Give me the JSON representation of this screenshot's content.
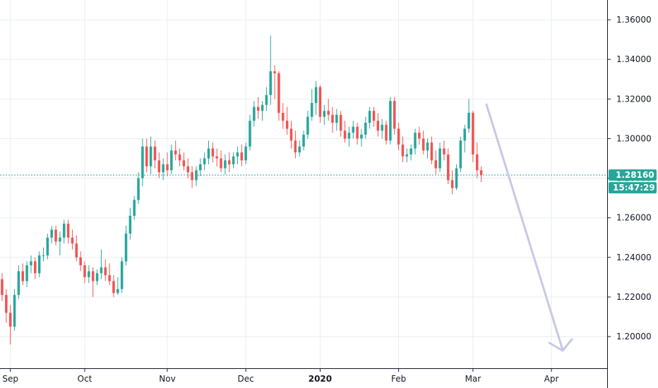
{
  "colors": {
    "up": "#26a69a",
    "down": "#ef5350",
    "grid": "#e8edf2",
    "axis": "#131722",
    "price_line": "#26a69a",
    "badge": "#26a69a",
    "arrow": "#c8c8e6"
  },
  "current_price_label": "1.28160",
  "countdown_label": "15:47:29",
  "chart_data": {
    "type": "candlestick",
    "title": "",
    "xlabel": "",
    "ylabel": "",
    "ylim": [
      1.184,
      1.37
    ],
    "grid": true,
    "y_ticks": [
      "1.36000",
      "1.34000",
      "1.32000",
      "1.30000",
      "1.28000",
      "1.26000",
      "1.24000",
      "1.22000",
      "1.20000"
    ],
    "x_ticks": [
      "Sep",
      "Oct",
      "Nov",
      "Dec",
      "2020",
      "Feb",
      "Mar",
      "Apr"
    ],
    "current_price": 1.2816,
    "candles": [
      [
        1.229,
        1.232,
        1.218,
        1.221
      ],
      [
        1.221,
        1.224,
        1.207,
        1.212
      ],
      [
        1.212,
        1.216,
        1.196,
        1.205
      ],
      [
        1.205,
        1.224,
        1.203,
        1.221
      ],
      [
        1.221,
        1.236,
        1.219,
        1.233
      ],
      [
        1.233,
        1.237,
        1.226,
        1.228
      ],
      [
        1.228,
        1.238,
        1.225,
        1.236
      ],
      [
        1.236,
        1.241,
        1.232,
        1.238
      ],
      [
        1.238,
        1.24,
        1.229,
        1.232
      ],
      [
        1.232,
        1.243,
        1.23,
        1.241
      ],
      [
        1.241,
        1.245,
        1.238,
        1.241
      ],
      [
        1.241,
        1.252,
        1.239,
        1.25
      ],
      [
        1.25,
        1.256,
        1.247,
        1.254
      ],
      [
        1.254,
        1.256,
        1.246,
        1.248
      ],
      [
        1.248,
        1.253,
        1.241,
        1.25
      ],
      [
        1.25,
        1.259,
        1.247,
        1.257
      ],
      [
        1.257,
        1.259,
        1.247,
        1.25
      ],
      [
        1.25,
        1.254,
        1.244,
        1.247
      ],
      [
        1.247,
        1.251,
        1.238,
        1.24
      ],
      [
        1.24,
        1.243,
        1.233,
        1.236
      ],
      [
        1.236,
        1.238,
        1.227,
        1.23
      ],
      [
        1.23,
        1.236,
        1.227,
        1.233
      ],
      [
        1.233,
        1.235,
        1.22,
        1.228
      ],
      [
        1.228,
        1.234,
        1.226,
        1.232
      ],
      [
        1.232,
        1.244,
        1.229,
        1.235
      ],
      [
        1.235,
        1.239,
        1.228,
        1.231
      ],
      [
        1.231,
        1.237,
        1.226,
        1.228
      ],
      [
        1.228,
        1.231,
        1.22,
        1.222
      ],
      [
        1.222,
        1.23,
        1.221,
        1.224
      ],
      [
        1.224,
        1.24,
        1.222,
        1.238
      ],
      [
        1.238,
        1.256,
        1.236,
        1.252
      ],
      [
        1.252,
        1.265,
        1.249,
        1.261
      ],
      [
        1.261,
        1.271,
        1.259,
        1.269
      ],
      [
        1.269,
        1.283,
        1.267,
        1.28
      ],
      [
        1.28,
        1.3,
        1.276,
        1.296
      ],
      [
        1.296,
        1.3,
        1.283,
        1.286
      ],
      [
        1.286,
        1.301,
        1.282,
        1.296
      ],
      [
        1.296,
        1.299,
        1.285,
        1.289
      ],
      [
        1.289,
        1.293,
        1.28,
        1.283
      ],
      [
        1.283,
        1.29,
        1.279,
        1.287
      ],
      [
        1.287,
        1.293,
        1.281,
        1.284
      ],
      [
        1.284,
        1.297,
        1.282,
        1.294
      ],
      [
        1.294,
        1.299,
        1.289,
        1.292
      ],
      [
        1.292,
        1.295,
        1.286,
        1.289
      ],
      [
        1.289,
        1.293,
        1.284,
        1.286
      ],
      [
        1.286,
        1.29,
        1.28,
        1.283
      ],
      [
        1.283,
        1.286,
        1.275,
        1.279
      ],
      [
        1.279,
        1.286,
        1.276,
        1.284
      ],
      [
        1.284,
        1.29,
        1.281,
        1.287
      ],
      [
        1.287,
        1.293,
        1.284,
        1.29
      ],
      [
        1.29,
        1.299,
        1.287,
        1.295
      ],
      [
        1.295,
        1.298,
        1.288,
        1.291
      ],
      [
        1.291,
        1.295,
        1.286,
        1.29
      ],
      [
        1.29,
        1.294,
        1.283,
        1.285
      ],
      [
        1.285,
        1.292,
        1.282,
        1.289
      ],
      [
        1.289,
        1.293,
        1.283,
        1.287
      ],
      [
        1.287,
        1.293,
        1.285,
        1.291
      ],
      [
        1.291,
        1.296,
        1.287,
        1.293
      ],
      [
        1.293,
        1.297,
        1.286,
        1.289
      ],
      [
        1.289,
        1.298,
        1.287,
        1.296
      ],
      [
        1.296,
        1.312,
        1.294,
        1.309
      ],
      [
        1.309,
        1.319,
        1.306,
        1.316
      ],
      [
        1.316,
        1.321,
        1.31,
        1.314
      ],
      [
        1.314,
        1.319,
        1.309,
        1.317
      ],
      [
        1.317,
        1.326,
        1.314,
        1.322
      ],
      [
        1.322,
        1.352,
        1.317,
        1.334
      ],
      [
        1.334,
        1.337,
        1.32,
        1.333
      ],
      [
        1.333,
        1.334,
        1.309,
        1.313
      ],
      [
        1.313,
        1.318,
        1.305,
        1.309
      ],
      [
        1.309,
        1.316,
        1.302,
        1.305
      ],
      [
        1.305,
        1.309,
        1.295,
        1.299
      ],
      [
        1.299,
        1.304,
        1.29,
        1.293
      ],
      [
        1.293,
        1.299,
        1.291,
        1.296
      ],
      [
        1.296,
        1.304,
        1.294,
        1.302
      ],
      [
        1.302,
        1.314,
        1.3,
        1.311
      ],
      [
        1.311,
        1.325,
        1.309,
        1.318
      ],
      [
        1.318,
        1.329,
        1.312,
        1.326
      ],
      [
        1.326,
        1.327,
        1.308,
        1.311
      ],
      [
        1.311,
        1.317,
        1.307,
        1.314
      ],
      [
        1.314,
        1.32,
        1.309,
        1.312
      ],
      [
        1.312,
        1.316,
        1.303,
        1.308
      ],
      [
        1.308,
        1.315,
        1.304,
        1.312
      ],
      [
        1.312,
        1.314,
        1.301,
        1.304
      ],
      [
        1.304,
        1.309,
        1.298,
        1.3
      ],
      [
        1.3,
        1.306,
        1.296,
        1.303
      ],
      [
        1.303,
        1.309,
        1.3,
        1.306
      ],
      [
        1.306,
        1.308,
        1.297,
        1.3
      ],
      [
        1.3,
        1.305,
        1.296,
        1.302
      ],
      [
        1.302,
        1.311,
        1.3,
        1.308
      ],
      [
        1.308,
        1.316,
        1.305,
        1.314
      ],
      [
        1.314,
        1.316,
        1.306,
        1.309
      ],
      [
        1.309,
        1.313,
        1.301,
        1.304
      ],
      [
        1.304,
        1.31,
        1.3,
        1.307
      ],
      [
        1.307,
        1.309,
        1.297,
        1.299
      ],
      [
        1.299,
        1.321,
        1.297,
        1.319
      ],
      [
        1.319,
        1.321,
        1.302,
        1.305
      ],
      [
        1.305,
        1.308,
        1.294,
        1.297
      ],
      [
        1.297,
        1.301,
        1.288,
        1.291
      ],
      [
        1.291,
        1.295,
        1.288,
        1.292
      ],
      [
        1.292,
        1.297,
        1.289,
        1.295
      ],
      [
        1.295,
        1.305,
        1.292,
        1.303
      ],
      [
        1.303,
        1.306,
        1.297,
        1.3
      ],
      [
        1.3,
        1.304,
        1.292,
        1.294
      ],
      [
        1.294,
        1.3,
        1.29,
        1.298
      ],
      [
        1.298,
        1.301,
        1.287,
        1.289
      ],
      [
        1.289,
        1.294,
        1.282,
        1.285
      ],
      [
        1.285,
        1.298,
        1.283,
        1.295
      ],
      [
        1.295,
        1.299,
        1.289,
        1.292
      ],
      [
        1.292,
        1.295,
        1.277,
        1.279
      ],
      [
        1.279,
        1.284,
        1.272,
        1.275
      ],
      [
        1.275,
        1.287,
        1.274,
        1.285
      ],
      [
        1.285,
        1.301,
        1.283,
        1.299
      ],
      [
        1.299,
        1.307,
        1.293,
        1.305
      ],
      [
        1.305,
        1.32,
        1.303,
        1.313
      ],
      [
        1.313,
        1.314,
        1.288,
        1.292
      ],
      [
        1.292,
        1.298,
        1.28,
        1.284
      ],
      [
        1.284,
        1.286,
        1.278,
        1.2816
      ]
    ]
  }
}
